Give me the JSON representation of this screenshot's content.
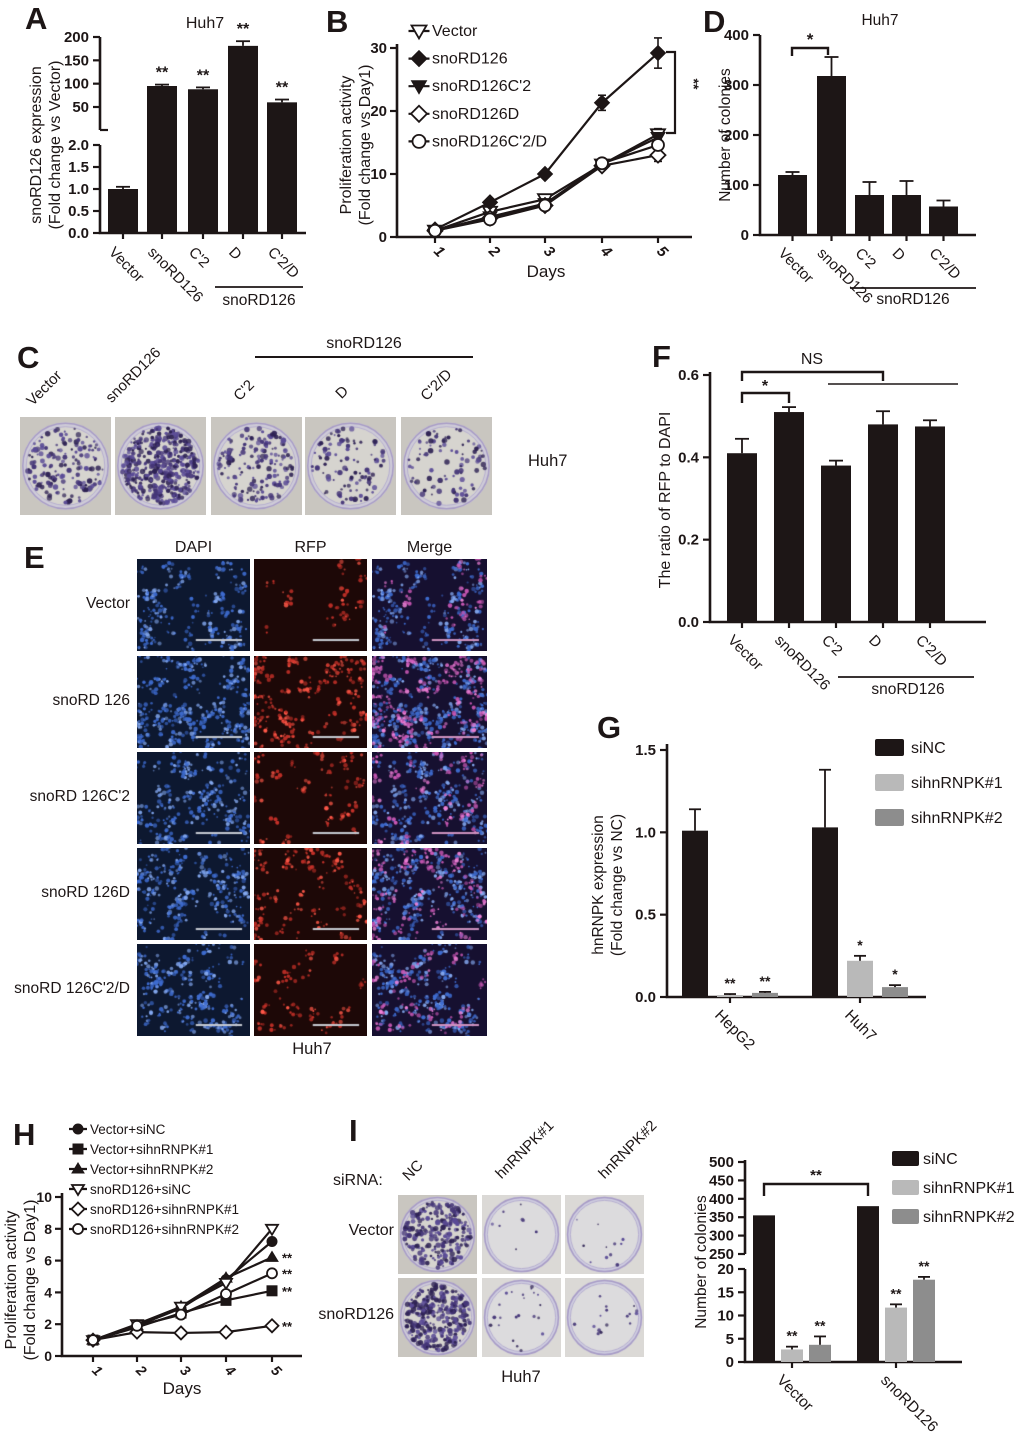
{
  "figure": {
    "cell_line": "Huh7"
  },
  "panels": {
    "a": {
      "letter": "A",
      "title": "Huh7",
      "ylabel_line1": "snoRD126 expression",
      "ylabel_line2": "(Fold change vs Vector)",
      "group_label": "snoRD126"
    },
    "b": {
      "letter": "B",
      "ylabel_line1": "Proliferation activity",
      "ylabel_line2": "(Fold change vs Day1)",
      "xlabel": "Days",
      "sig_label": "**"
    },
    "c": {
      "letter": "C",
      "labels": [
        "Vector",
        "snoRD126",
        "C'2",
        "D",
        "C'2/D"
      ],
      "group_label": "snoRD126",
      "caption": "Huh7"
    },
    "d": {
      "letter": "D",
      "title": "Huh7",
      "ylabel": "Number of colonies",
      "group_label": "snoRD126",
      "sig_label": "*"
    },
    "e": {
      "letter": "E",
      "col_headers": [
        "DAPI",
        "RFP",
        "Merge"
      ],
      "row_labels": [
        "Vector",
        "snoRD 126",
        "snoRD 126C'2",
        "snoRD 126D",
        "snoRD 126C'2/D"
      ],
      "caption": "Huh7"
    },
    "f": {
      "letter": "F",
      "ylabel": "The ratio of RFP to DAPI",
      "ns_label": "NS",
      "sig_label": "*",
      "group_label": "snoRD126"
    },
    "g": {
      "letter": "G",
      "ylabel_line1": "hnRNPK expression",
      "ylabel_line2": "(Fold change vs NC)"
    },
    "h": {
      "letter": "H",
      "ylabel_line1": "Proliferation activity",
      "ylabel_line2": "(Fold change vs Day1)",
      "xlabel": "Days"
    },
    "i": {
      "letter": "I",
      "sirna_label": "siRNA:",
      "col_labels": [
        "NC",
        "hnRNPK#1",
        "hnRNPK#2"
      ],
      "row_labels": [
        "Vector",
        "snoRD126"
      ],
      "caption": "Huh7",
      "ylabel": "Number of colonies",
      "sig_label": "**"
    }
  },
  "chart_data": [
    {
      "id": "a",
      "type": "bar",
      "title": "Huh7",
      "ylabel": "snoRD126 expression (Fold change vs Vector)",
      "categories": [
        "Vector",
        "snoRD126",
        "C'2",
        "D",
        "C'2/D"
      ],
      "values": [
        1.0,
        95,
        88,
        181,
        60
      ],
      "errors": [
        0.05,
        3,
        4,
        10,
        6
      ],
      "sig": [
        "",
        "**",
        "**",
        "**",
        "**"
      ],
      "axis_break": true,
      "upper_ticks": [
        50,
        100,
        150,
        200
      ],
      "lower_ticks": [
        0,
        0.5,
        1,
        1.5,
        2
      ],
      "group_label": "snoRD126",
      "group_members": [
        "C'2",
        "D",
        "C'2/D"
      ]
    },
    {
      "id": "b",
      "type": "line",
      "ylabel": "Proliferation activity (Fold change vs Day1)",
      "xlabel": "Days",
      "x": [
        1,
        2,
        3,
        4,
        5
      ],
      "ylim": [
        0,
        30
      ],
      "yticks": [
        0,
        10,
        20,
        30
      ],
      "series": [
        {
          "name": "Vector",
          "marker": "triangle-down-open",
          "values": [
            1,
            4,
            6,
            11.5,
            16.3
          ],
          "errors": [
            0,
            0,
            0.5,
            0.6,
            0.9
          ]
        },
        {
          "name": "snoRD126",
          "marker": "diamond-filled",
          "values": [
            1.2,
            5.5,
            10,
            21.3,
            29.2
          ],
          "errors": [
            0,
            0,
            0.5,
            1.2,
            2.4
          ]
        },
        {
          "name": "snoRD126C'2",
          "marker": "triangle-down-filled",
          "values": [
            1,
            3.2,
            5.3,
            11.5,
            15.8
          ],
          "errors": [
            0,
            0,
            0,
            0.5,
            0.8
          ]
        },
        {
          "name": "snoRD126D",
          "marker": "diamond-open",
          "values": [
            1,
            3,
            5,
            11.3,
            13
          ],
          "errors": [
            0,
            0,
            0,
            0.5,
            1
          ]
        },
        {
          "name": "snoRD126C'2/D",
          "marker": "circle-open",
          "values": [
            1,
            2.8,
            5,
            11.7,
            14.6
          ],
          "errors": [
            0,
            0,
            0,
            0.6,
            0.9
          ]
        }
      ],
      "sig_bracket": {
        "label": "**",
        "note": "snoRD126 vs other groups at day 5"
      }
    },
    {
      "id": "d",
      "type": "bar",
      "title": "Huh7",
      "ylabel": "Number of colonies",
      "categories": [
        "Vector",
        "snoRD126",
        "C'2",
        "D",
        "C'2/D"
      ],
      "values": [
        120,
        318,
        80,
        80,
        57
      ],
      "errors": [
        6,
        38,
        26,
        28,
        12
      ],
      "yticks": [
        0,
        100,
        200,
        300,
        400
      ],
      "sig_bracket": {
        "from": "Vector",
        "to": "snoRD126",
        "label": "*"
      },
      "group_label": "snoRD126",
      "group_members": [
        "C'2",
        "D",
        "C'2/D"
      ]
    },
    {
      "id": "f",
      "type": "bar",
      "ylabel": "The ratio of RFP to DAPI",
      "categories": [
        "Vector",
        "snoRD126",
        "C'2",
        "D",
        "C'2/D"
      ],
      "values": [
        0.41,
        0.51,
        0.38,
        0.48,
        0.475
      ],
      "errors": [
        0.035,
        0.012,
        0.012,
        0.032,
        0.015
      ],
      "yticks": [
        0,
        0.2,
        0.4,
        0.6
      ],
      "sig_bracket": {
        "from": "Vector",
        "to": "snoRD126",
        "label": "*"
      },
      "ns_bracket": {
        "from": "Vector",
        "to": "snoRD126 mutant group",
        "label": "NS"
      },
      "group_label": "snoRD126",
      "group_members": [
        "C'2",
        "D",
        "C'2/D"
      ]
    },
    {
      "id": "g",
      "type": "grouped_bar",
      "ylabel": "hnRNPK expression (Fold change vs NC)",
      "categories": [
        "HepG2",
        "Huh7"
      ],
      "yticks": [
        0,
        0.5,
        1,
        1.5
      ],
      "series": [
        {
          "name": "siNC",
          "color": "#1d1616",
          "values": [
            1.01,
            1.03
          ],
          "errors": [
            0.13,
            0.35
          ],
          "sig": [
            "",
            ""
          ]
        },
        {
          "name": "sihnRNPK#1",
          "color": "#b9b9b9",
          "values": [
            0.012,
            0.22
          ],
          "errors": [
            0.006,
            0.03
          ],
          "sig": [
            "**",
            "*"
          ]
        },
        {
          "name": "sihnRNPK#2",
          "color": "#8d8d8d",
          "values": [
            0.025,
            0.06
          ],
          "errors": [
            0.006,
            0.012
          ],
          "sig": [
            "**",
            "*"
          ]
        }
      ],
      "legend_position": "top-right"
    },
    {
      "id": "h",
      "type": "line",
      "ylabel": "Proliferation activity (Fold change vs Day1)",
      "xlabel": "Days",
      "x": [
        1,
        2,
        3,
        4,
        5
      ],
      "ylim": [
        0,
        10
      ],
      "yticks": [
        0,
        2,
        4,
        6,
        8,
        10
      ],
      "series": [
        {
          "name": "Vector+siNC",
          "marker": "circle-filled",
          "values": [
            1,
            1.9,
            3.0,
            4.8,
            7.2
          ]
        },
        {
          "name": "Vector+sihnRNPK#1",
          "marker": "square-filled",
          "values": [
            1,
            1.8,
            2.7,
            3.5,
            4.1
          ],
          "sig": "**"
        },
        {
          "name": "Vector+sihnRNPK#2",
          "marker": "triangle-up-filled",
          "values": [
            1,
            1.9,
            3.1,
            4.9,
            6.2
          ],
          "sig": "**"
        },
        {
          "name": "snoRD126+siNC",
          "marker": "triangle-down-open",
          "values": [
            1,
            2.0,
            3.1,
            4.6,
            8.0
          ]
        },
        {
          "name": "snoRD126+sihnRNPK#1",
          "marker": "diamond-open",
          "values": [
            1,
            1.5,
            1.45,
            1.5,
            1.9
          ],
          "sig": "**"
        },
        {
          "name": "snoRD126+sihnRNPK#2",
          "marker": "circle-open",
          "values": [
            1,
            1.9,
            2.6,
            3.9,
            5.2
          ],
          "sig": "**"
        }
      ]
    },
    {
      "id": "i",
      "type": "grouped_bar",
      "axis_break": true,
      "ylabel": "Number of colonies",
      "categories": [
        "Vector",
        "snoRD126"
      ],
      "upper_ticks": [
        250,
        300,
        350,
        400,
        450,
        500
      ],
      "lower_ticks": [
        0,
        5,
        10,
        15,
        20
      ],
      "series": [
        {
          "name": "siNC",
          "color": "#1d1616",
          "values": [
            355,
            380
          ],
          "errors": [
            0,
            0
          ],
          "sig": [
            "",
            ""
          ]
        },
        {
          "name": "sihnRNPK#1",
          "color": "#b9b9b9",
          "values": [
            2.7,
            11.7
          ],
          "errors": [
            0.6,
            0.7
          ],
          "sig": [
            "**",
            "**"
          ]
        },
        {
          "name": "sihnRNPK#2",
          "color": "#8d8d8d",
          "values": [
            3.7,
            17.7
          ],
          "errors": [
            1.8,
            0.6
          ],
          "sig": [
            "**",
            "**"
          ]
        }
      ],
      "sig_bracket": {
        "from": "Vector siNC",
        "to": "snoRD126 siNC",
        "label": "**"
      }
    }
  ]
}
